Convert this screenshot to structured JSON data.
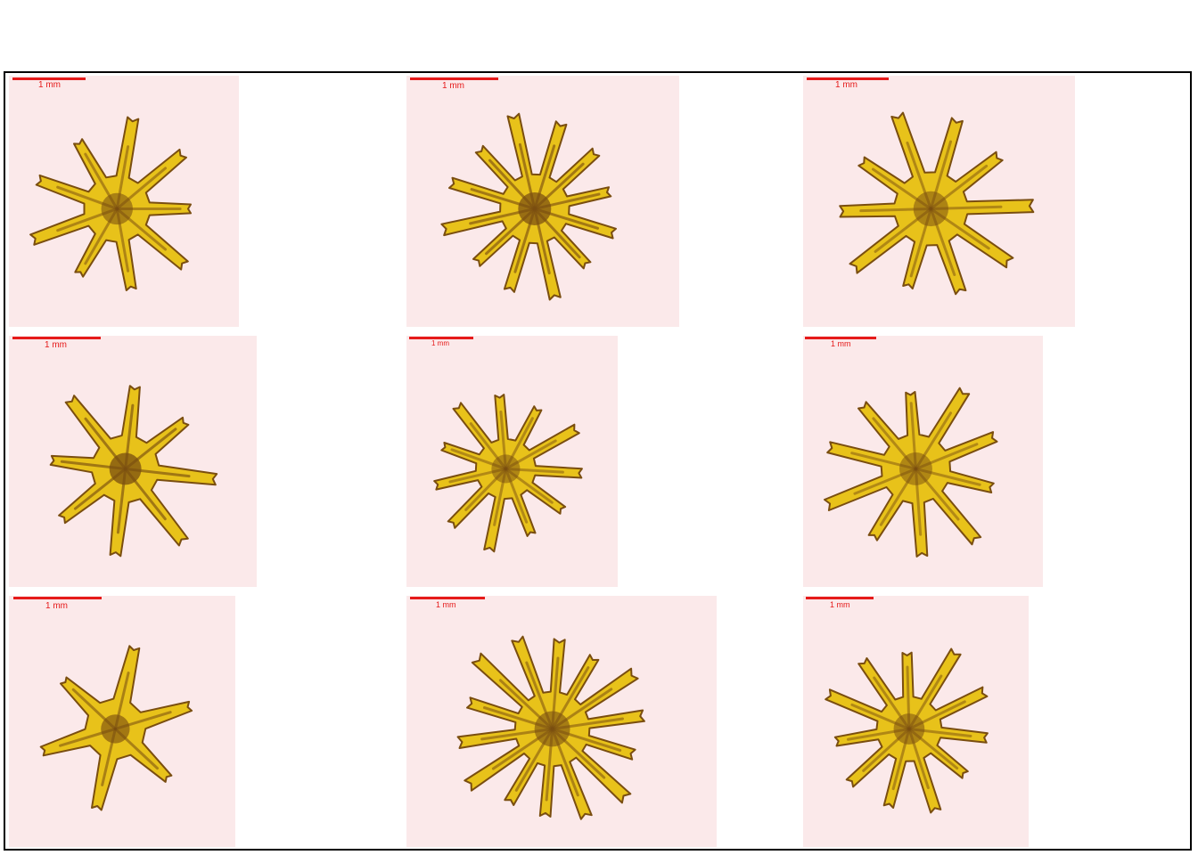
{
  "panels": [
    {
      "scale_label": "1 mm",
      "arms": 9,
      "spread": 0.7,
      "darkness": 0.45
    },
    {
      "scale_label": "1 mm",
      "arms": 12,
      "spread": 0.55,
      "darkness": 0.7
    },
    {
      "scale_label": "1 mm",
      "arms": 10,
      "spread": 0.75,
      "darkness": 0.4
    },
    {
      "scale_label": "1 mm",
      "arms": 8,
      "spread": 0.5,
      "darkness": 0.75
    },
    {
      "scale_label": "1 mm",
      "arms": 11,
      "spread": 0.65,
      "darkness": 0.35
    },
    {
      "scale_label": "1 mm",
      "arms": 10,
      "spread": 0.7,
      "darkness": 0.35
    },
    {
      "scale_label": "1 mm",
      "arms": 6,
      "spread": 0.45,
      "darkness": 0.55
    },
    {
      "scale_label": "1 mm",
      "arms": 14,
      "spread": 0.8,
      "darkness": 0.5
    },
    {
      "scale_label": "1 mm",
      "arms": 11,
      "spread": 0.7,
      "darkness": 0.4
    }
  ],
  "colors": {
    "background": "#fbe9ea",
    "specimen": "#e8c21a",
    "specimen_dark": "#7a4e10",
    "scale_bar": "#e51a1a",
    "frame": "#000000"
  }
}
